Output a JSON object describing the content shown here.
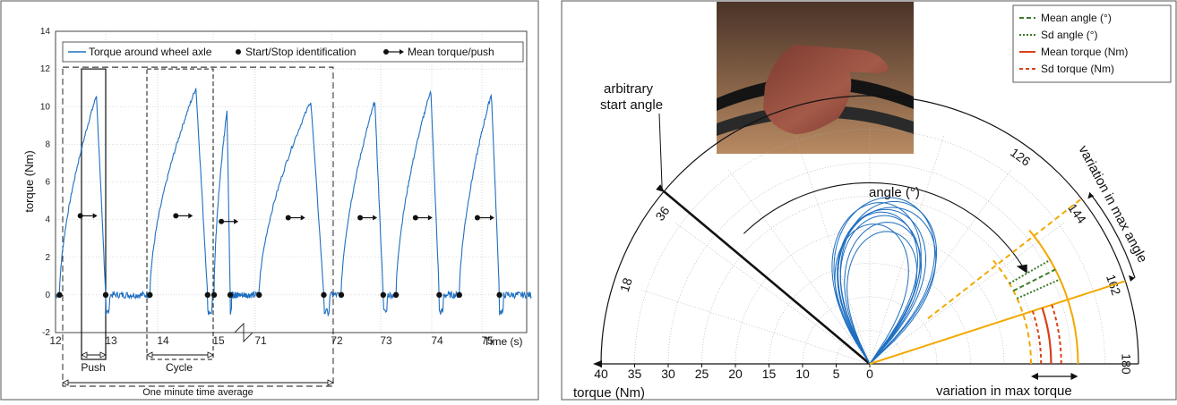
{
  "chart_data": [
    {
      "type": "line",
      "ylabel": "torque (Nm)",
      "xlabel": "Time (s)",
      "ylim": [
        -2,
        14
      ],
      "yticks": [
        "-2",
        "0",
        "2",
        "4",
        "6",
        "8",
        "10",
        "12",
        "14"
      ],
      "xticks": [
        "12",
        "13",
        "14",
        "15",
        "71",
        "72",
        "73",
        "74",
        "75"
      ],
      "axis_break": true,
      "grid": true,
      "legend_position": "top",
      "legend": [
        {
          "label": "Torque around wheel axle",
          "marker": "line",
          "color": "#1f6fc0"
        },
        {
          "label": "Start/Stop identification",
          "marker": "dot",
          "color": "#111111"
        },
        {
          "label": "Mean torque/push",
          "marker": "dot-arrow",
          "color": "#111111"
        }
      ],
      "pushes": [
        {
          "start": 12.08,
          "end": 13.0,
          "peak": 10.6,
          "mean": 4.2
        },
        {
          "start": 13.85,
          "end": 14.9,
          "peak": 11.0,
          "mean": 4.2
        },
        {
          "start": 15.05,
          "end": 15.95,
          "peak": 9.8,
          "mean": 3.9
        },
        {
          "start": 71.05,
          "end": 71.9,
          "peak": 10.3,
          "mean": 4.1
        },
        {
          "start": 72.2,
          "end": 73.05,
          "peak": 10.3,
          "mean": 4.1
        },
        {
          "start": 73.3,
          "end": 74.15,
          "peak": 10.9,
          "mean": 4.1
        },
        {
          "start": 74.55,
          "end": 75.35,
          "peak": 10.7,
          "mean": 4.1
        }
      ],
      "annotations": {
        "push": "Push",
        "cycle": "Cycle",
        "average": "One minute time average"
      }
    },
    {
      "type": "polar",
      "angle_label": "angle (°)",
      "torque_label": "torque (Nm)",
      "angle_ticks": [
        "18",
        "36",
        "126",
        "144",
        "162",
        "180"
      ],
      "torque_ticks": [
        "40",
        "35",
        "30",
        "25",
        "20",
        "15",
        "10",
        "5",
        "0"
      ],
      "start_label": "arbitrary start angle",
      "variation_angle_label": "variation in max angle",
      "variation_torque_label": "variation in max torque",
      "legend_position": "top-right",
      "legend": [
        {
          "label": "Mean angle (°)",
          "color": "#3d7a2a",
          "style": "dashed"
        },
        {
          "label": "Sd angle (°)",
          "color": "#3d7a2a",
          "style": "dotted"
        },
        {
          "label": "Mean torque (Nm)",
          "color": "#d9401a",
          "style": "solid"
        },
        {
          "label": "Sd torque (Nm)",
          "color": "#d9401a",
          "style": "dashed"
        }
      ],
      "start_angle_deg": 40,
      "mean_angle_deg": 153,
      "sd_angle_deg": [
        150,
        156
      ],
      "max_angle_range_deg": [
        142,
        162
      ],
      "mean_torque_nm": 27,
      "sd_torque_nm": [
        25.5,
        28.5
      ],
      "max_torque_range_nm": [
        24,
        31
      ],
      "loops": [
        {
          "a0": 57,
          "a1": 128,
          "r": 26
        },
        {
          "a0": 59,
          "a1": 132,
          "r": 25
        },
        {
          "a0": 61,
          "a1": 129,
          "r": 24
        },
        {
          "a0": 58,
          "a1": 135,
          "r": 27
        },
        {
          "a0": 63,
          "a1": 131,
          "r": 23
        },
        {
          "a0": 60,
          "a1": 127,
          "r": 24.5
        },
        {
          "a0": 56,
          "a1": 124,
          "r": 22.5
        },
        {
          "a0": 62,
          "a1": 136,
          "r": 26.5
        },
        {
          "a0": 64,
          "a1": 130,
          "r": 21.5
        },
        {
          "a0": 59,
          "a1": 138,
          "r": 25.5
        }
      ],
      "colors": {
        "trace": "#1f6fc0",
        "orange": "#f2a900"
      }
    }
  ]
}
